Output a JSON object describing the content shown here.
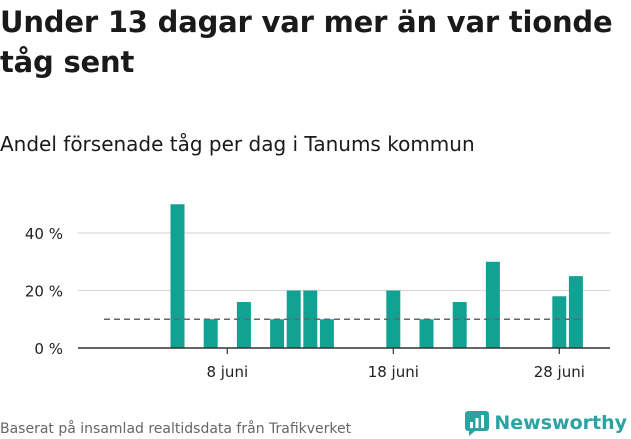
{
  "title": "Under 13 dagar var mer än var tionde tåg sent",
  "subtitle": "Andel försenade tåg per dag i Tanums kommun",
  "footer": {
    "source": "Baserat på insamlad realtidsdata från Trafikverket",
    "brand": "Newsworthy"
  },
  "colors": {
    "bar": "#12a294",
    "reference_line": "#666666",
    "grid": "#d9d9d9",
    "axis": "#333333",
    "brand": "#2aa3a3"
  },
  "chart_data": {
    "type": "bar",
    "title": "Under 13 dagar var mer än var tionde tåg sent",
    "subtitle": "Andel försenade tåg per dag i Tanums kommun",
    "xlabel": "",
    "ylabel": "",
    "x_unit": "day of June",
    "x": [
      1,
      2,
      3,
      4,
      5,
      6,
      7,
      8,
      9,
      10,
      11,
      12,
      13,
      14,
      15,
      16,
      17,
      18,
      19,
      20,
      21,
      22,
      23,
      24,
      25,
      26,
      27,
      28,
      29,
      30
    ],
    "values": [
      0,
      0,
      0,
      0,
      50,
      0,
      10,
      0,
      16,
      0,
      10,
      20,
      20,
      10,
      0,
      0,
      0,
      20,
      0,
      10,
      0,
      16,
      0,
      30,
      0,
      0,
      0,
      18,
      25,
      0
    ],
    "reference_value": 10,
    "reference_line_style": "dashed",
    "ylim": [
      0,
      52
    ],
    "y_ticks": [
      0,
      20,
      40
    ],
    "y_tick_labels": [
      "0 %",
      "20 %",
      "40 %"
    ],
    "x_ticks": [
      8,
      18,
      28
    ],
    "x_tick_labels": [
      "8 juni",
      "18 juni",
      "28 juni"
    ],
    "grid": true,
    "legend": "none"
  }
}
